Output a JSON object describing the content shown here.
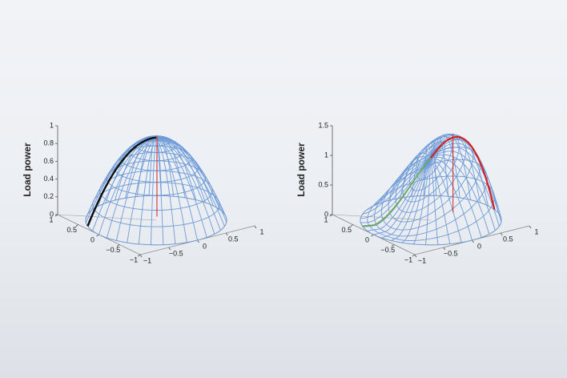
{
  "chart_data": [
    {
      "type": "surface",
      "zlabel": "Load power",
      "color": "#6f9bd8",
      "xlim": [
        -1,
        1
      ],
      "xticks": [
        {
          "value": -1,
          "label": "−1"
        },
        {
          "value": -0.5,
          "label": "−0.5"
        },
        0,
        0.5,
        1
      ],
      "ylim": [
        -1,
        1
      ],
      "yticks": [
        {
          "value": -1,
          "label": "−1"
        },
        {
          "value": -0.5,
          "label": "−0.5"
        },
        0,
        0.5,
        1
      ],
      "zlim": [
        0,
        1
      ],
      "zticks": [
        0,
        0.2,
        0.4,
        0.6,
        0.8,
        1
      ]
    },
    {
      "type": "surface",
      "zlabel": "Load power",
      "color": "#6f9bd8",
      "xlim": [
        -1,
        1
      ],
      "xticks": [
        {
          "value": -1,
          "label": "−1"
        },
        {
          "value": -0.5,
          "label": "−0.5"
        },
        0,
        0.5,
        1
      ],
      "ylim": [
        -1,
        1
      ],
      "yticks": [
        {
          "value": -1,
          "label": "−1"
        },
        {
          "value": -0.5,
          "label": "−0.5"
        },
        0,
        0.5,
        1
      ],
      "zlim": [
        0,
        1.5
      ],
      "zticks": [
        0,
        0.5,
        1,
        1.5
      ]
    }
  ]
}
